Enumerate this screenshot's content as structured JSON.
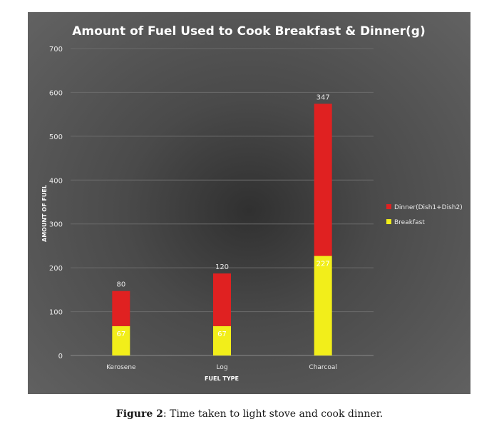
{
  "chart_data": {
    "type": "bar",
    "stacked": true,
    "title": "Amount of Fuel Used to Cook Breakfast & Dinner(g)",
    "xlabel": "FUEL TYPE",
    "ylabel": "AMOUNT OF FUEL",
    "ylim": [
      0,
      700
    ],
    "yticks": [
      0,
      100,
      200,
      300,
      400,
      500,
      600,
      700
    ],
    "grid": true,
    "legend_position": "right",
    "categories": [
      "Kerosene",
      "Log",
      "Charcoal"
    ],
    "series": [
      {
        "name": "Breakfast",
        "color": "#f2ee1a",
        "values": [
          67,
          67,
          227
        ]
      },
      {
        "name": "Dinner(Dish1+Dish2)",
        "color": "#e02121",
        "values": [
          80,
          120,
          347
        ]
      }
    ],
    "legend_order": [
      "Dinner(Dish1+Dish2)",
      "Breakfast"
    ]
  },
  "caption": {
    "label": "Figure 2",
    "text": ": Time taken to light stove and cook dinner."
  }
}
